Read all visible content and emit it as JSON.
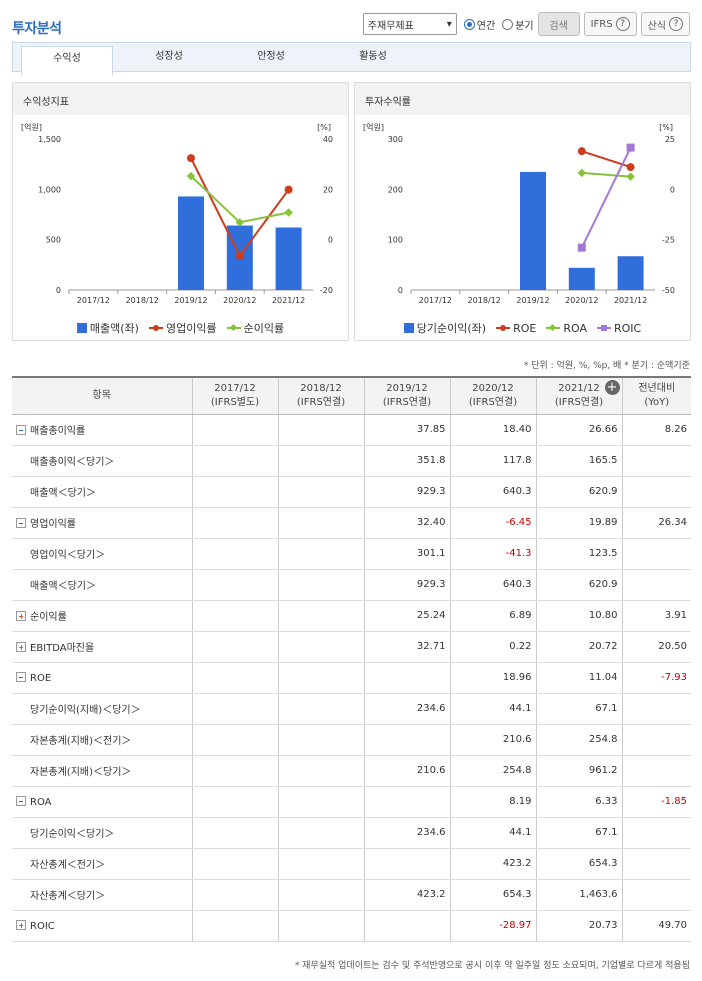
{
  "page_title": "투자분석",
  "toolbar": {
    "select_value": "주재무제표",
    "radio_annual": "연간",
    "radio_quarter": "분기",
    "search_label": "검색",
    "ifrs_label": "IFRS",
    "formula_label": "산식",
    "help_glyph": "?"
  },
  "tabs": [
    "수익성",
    "성장성",
    "안정성",
    "활동성"
  ],
  "panel_left": {
    "title": "수익성지표",
    "legend": [
      "매출액(좌)",
      "영업이익률",
      "순이익률"
    ]
  },
  "panel_right": {
    "title": "투자수익률",
    "legend": [
      "당기순이익(좌)",
      "ROE",
      "ROA",
      "ROIC"
    ]
  },
  "chart_data": [
    {
      "type": "bar",
      "categories": [
        "2017/12",
        "2018/12",
        "2019/12",
        "2020/12",
        "2021/12"
      ],
      "left_unit": "[억원]",
      "right_unit": "[%]",
      "left_ticks": [
        "1,500",
        "1,000",
        "500",
        "0"
      ],
      "right_ticks": [
        "40",
        "20",
        "0",
        "-20"
      ],
      "ylim_left": [
        0,
        1500
      ],
      "ylim_right": [
        -20,
        40
      ],
      "bars": {
        "name": "매출액(좌)",
        "values": [
          null,
          null,
          929.3,
          640.3,
          620.9
        ],
        "color": "#2f6edb"
      },
      "series": [
        {
          "name": "영업이익률",
          "values": [
            null,
            null,
            32.4,
            -6.45,
            19.89
          ],
          "color": "#cc3d1e"
        },
        {
          "name": "순이익률",
          "values": [
            null,
            null,
            25.24,
            6.89,
            10.8
          ],
          "color": "#86c23a"
        }
      ]
    },
    {
      "type": "bar",
      "categories": [
        "2017/12",
        "2018/12",
        "2019/12",
        "2020/12",
        "2021/12"
      ],
      "left_unit": "[억원]",
      "right_unit": "[%]",
      "left_ticks": [
        "300",
        "200",
        "100",
        "0"
      ],
      "right_ticks": [
        "25",
        "0",
        "-25",
        "-50"
      ],
      "ylim_left": [
        0,
        300
      ],
      "ylim_right": [
        -50,
        25
      ],
      "bars": {
        "name": "당기순이익(좌)",
        "values": [
          null,
          null,
          234.6,
          44.1,
          67.1
        ],
        "color": "#2f6edb"
      },
      "series": [
        {
          "name": "ROE",
          "values": [
            null,
            null,
            null,
            18.96,
            11.04
          ],
          "color": "#cc3d1e"
        },
        {
          "name": "ROA",
          "values": [
            null,
            null,
            null,
            8.19,
            6.33
          ],
          "color": "#86c23a"
        },
        {
          "name": "ROIC",
          "values": [
            null,
            null,
            null,
            -28.97,
            20.73
          ],
          "color": "#a477d6"
        }
      ]
    }
  ],
  "unit_note": "* 단위 : 억원, %, %p, 배   * 분기 : 순액기준",
  "table": {
    "headers": [
      [
        "항목",
        ""
      ],
      [
        "2017/12",
        "(IFRS별도)"
      ],
      [
        "2018/12",
        "(IFRS연결)"
      ],
      [
        "2019/12",
        "(IFRS연결)"
      ],
      [
        "2020/12",
        "(IFRS연결)"
      ],
      [
        "2021/12",
        "(IFRS연결)"
      ],
      [
        "전년대비",
        "(YoY)"
      ]
    ],
    "rows": [
      {
        "label": "매출총이익률",
        "toggle": "minus",
        "values": [
          "",
          "",
          "37.85",
          "18.40",
          "26.66",
          "8.26"
        ]
      },
      {
        "label": "매출총이익＜당기＞",
        "toggle": "",
        "values": [
          "",
          "",
          "351.8",
          "117.8",
          "165.5",
          ""
        ]
      },
      {
        "label": "매출액＜당기＞",
        "toggle": "",
        "values": [
          "",
          "",
          "929.3",
          "640.3",
          "620.9",
          ""
        ]
      },
      {
        "label": "영업이익률",
        "toggle": "minus",
        "values": [
          "",
          "",
          "32.40",
          "-6.45",
          "19.89",
          "26.34"
        ]
      },
      {
        "label": "영업이익＜당기＞",
        "toggle": "",
        "values": [
          "",
          "",
          "301.1",
          "-41.3",
          "123.5",
          ""
        ]
      },
      {
        "label": "매출액＜당기＞",
        "toggle": "",
        "values": [
          "",
          "",
          "929.3",
          "640.3",
          "620.9",
          ""
        ]
      },
      {
        "label": "순이익률",
        "toggle": "plus",
        "values": [
          "",
          "",
          "25.24",
          "6.89",
          "10.80",
          "3.91"
        ]
      },
      {
        "label": "EBITDA마진율",
        "toggle": "plus",
        "values": [
          "",
          "",
          "32.71",
          "0.22",
          "20.72",
          "20.50"
        ]
      },
      {
        "label": "ROE",
        "toggle": "minus",
        "values": [
          "",
          "",
          "",
          "18.96",
          "11.04",
          "-7.93"
        ]
      },
      {
        "label": "당기순이익(지배)＜당기＞",
        "toggle": "",
        "values": [
          "",
          "",
          "234.6",
          "44.1",
          "67.1",
          ""
        ]
      },
      {
        "label": "자본총계(지배)＜전기＞",
        "toggle": "",
        "values": [
          "",
          "",
          "",
          "210.6",
          "254.8",
          ""
        ]
      },
      {
        "label": "자본총계(지배)＜당기＞",
        "toggle": "",
        "values": [
          "",
          "",
          "210.6",
          "254.8",
          "961.2",
          ""
        ]
      },
      {
        "label": "ROA",
        "toggle": "minus",
        "values": [
          "",
          "",
          "",
          "8.19",
          "6.33",
          "-1.85"
        ]
      },
      {
        "label": "당기순이익＜당기＞",
        "toggle": "",
        "values": [
          "",
          "",
          "234.6",
          "44.1",
          "67.1",
          ""
        ]
      },
      {
        "label": "자산총계＜전기＞",
        "toggle": "",
        "values": [
          "",
          "",
          "",
          "423.2",
          "654.3",
          ""
        ]
      },
      {
        "label": "자산총계＜당기＞",
        "toggle": "",
        "values": [
          "",
          "",
          "423.2",
          "654.3",
          "1,463.6",
          ""
        ]
      },
      {
        "label": "ROIC",
        "toggle": "plus",
        "values": [
          "",
          "",
          "",
          "-28.97",
          "20.73",
          "49.70"
        ]
      }
    ]
  },
  "footnote": "* 재무실적 업데이트는 검수 및 주석반영으로 공시 이후 약 일주일 정도 소요되며, 기업별로 다르게 적용됨"
}
